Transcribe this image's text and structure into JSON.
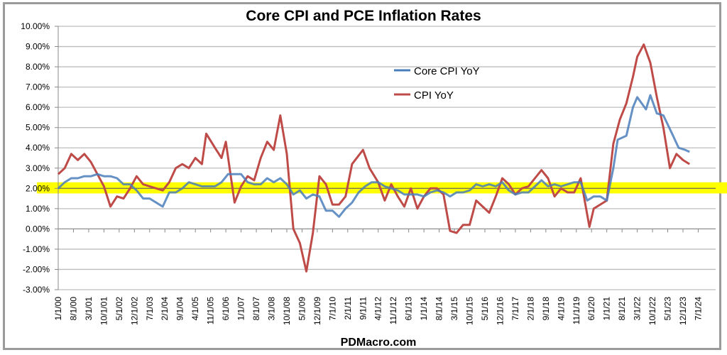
{
  "chart_data": {
    "type": "line",
    "title": "Core CPI and PCE Inflation Rates",
    "xlabel": "PDMacro.com",
    "ylabel": "",
    "ylim": [
      -3,
      10
    ],
    "yticks": [
      "-3.00%",
      "-2.00%",
      "-1.00%",
      "0.00%",
      "1.00%",
      "2.00%",
      "3.00%",
      "4.00%",
      "5.00%",
      "6.00%",
      "7.00%",
      "8.00%",
      "9.00%",
      "10.00%"
    ],
    "xticks": [
      "1/1/00",
      "8/1/00",
      "3/1/01",
      "10/1/01",
      "5/1/02",
      "12/1/02",
      "7/1/03",
      "2/1/04",
      "9/1/04",
      "4/1/05",
      "11/1/05",
      "6/1/06",
      "1/1/07",
      "8/1/07",
      "3/1/08",
      "10/1/08",
      "5/1/09",
      "12/1/09",
      "7/1/10",
      "2/1/11",
      "9/1/11",
      "4/1/12",
      "11/1/12",
      "6/1/13",
      "1/1/14",
      "8/1/14",
      "3/1/15",
      "10/1/15",
      "5/1/16",
      "12/1/16",
      "7/1/17",
      "2/1/18",
      "9/1/18",
      "4/1/19",
      "11/1/19",
      "6/1/20",
      "1/1/21",
      "8/1/21",
      "3/1/22",
      "10/1/22",
      "5/1/23",
      "12/1/23",
      "7/1/24"
    ],
    "xlim": [
      "2000-01",
      "2025-03"
    ],
    "grid": "horizontal",
    "legend": "top-center-right",
    "target_band": {
      "from": 1.75,
      "to": 2.3,
      "color": "#ffff00"
    },
    "series": [
      {
        "name": "Core CPI YoY",
        "color": "#4a7ebb",
        "x": [
          "2000-01",
          "2000-04",
          "2000-07",
          "2000-10",
          "2001-01",
          "2001-04",
          "2001-07",
          "2001-10",
          "2002-01",
          "2002-04",
          "2002-07",
          "2002-10",
          "2003-01",
          "2003-04",
          "2003-07",
          "2003-10",
          "2004-01",
          "2004-04",
          "2004-07",
          "2004-10",
          "2005-01",
          "2005-04",
          "2005-07",
          "2005-10",
          "2006-01",
          "2006-04",
          "2006-07",
          "2006-10",
          "2007-01",
          "2007-04",
          "2007-07",
          "2007-10",
          "2008-01",
          "2008-04",
          "2008-07",
          "2008-10",
          "2009-01",
          "2009-04",
          "2009-07",
          "2009-10",
          "2010-01",
          "2010-04",
          "2010-07",
          "2010-10",
          "2011-01",
          "2011-04",
          "2011-07",
          "2011-10",
          "2012-01",
          "2012-04",
          "2012-07",
          "2012-10",
          "2013-01",
          "2013-04",
          "2013-07",
          "2013-10",
          "2014-01",
          "2014-04",
          "2014-07",
          "2014-10",
          "2015-01",
          "2015-04",
          "2015-07",
          "2015-10",
          "2016-01",
          "2016-04",
          "2016-07",
          "2016-10",
          "2017-01",
          "2017-04",
          "2017-07",
          "2017-10",
          "2018-01",
          "2018-04",
          "2018-07",
          "2018-10",
          "2019-01",
          "2019-04",
          "2019-07",
          "2019-10",
          "2020-01",
          "2020-04",
          "2020-07",
          "2020-10",
          "2021-01",
          "2021-04",
          "2021-06",
          "2021-10",
          "2022-01",
          "2022-03",
          "2022-07",
          "2022-09",
          "2022-12",
          "2023-03",
          "2023-07",
          "2023-10",
          "2024-01",
          "2024-03"
        ],
        "values": [
          2.0,
          2.3,
          2.5,
          2.5,
          2.6,
          2.6,
          2.7,
          2.6,
          2.6,
          2.5,
          2.2,
          2.2,
          1.9,
          1.5,
          1.5,
          1.3,
          1.1,
          1.8,
          1.8,
          2.0,
          2.3,
          2.2,
          2.1,
          2.1,
          2.1,
          2.3,
          2.7,
          2.7,
          2.7,
          2.3,
          2.2,
          2.2,
          2.5,
          2.3,
          2.5,
          2.2,
          1.7,
          1.9,
          1.5,
          1.7,
          1.6,
          0.9,
          0.9,
          0.6,
          1.0,
          1.3,
          1.8,
          2.1,
          2.3,
          2.3,
          2.1,
          2.0,
          1.9,
          1.7,
          1.7,
          1.7,
          1.6,
          1.8,
          1.9,
          1.8,
          1.6,
          1.8,
          1.8,
          1.9,
          2.2,
          2.1,
          2.2,
          2.1,
          2.3,
          1.9,
          1.7,
          1.8,
          1.8,
          2.1,
          2.4,
          2.1,
          2.2,
          2.1,
          2.2,
          2.3,
          2.3,
          1.4,
          1.6,
          1.6,
          1.4,
          3.0,
          4.4,
          4.6,
          6.0,
          6.5,
          5.9,
          6.6,
          5.7,
          5.6,
          4.7,
          4.0,
          3.9,
          3.8
        ]
      },
      {
        "name": "CPI YoY",
        "color": "#be4b48",
        "x": [
          "2000-01",
          "2000-04",
          "2000-07",
          "2000-10",
          "2001-01",
          "2001-04",
          "2001-07",
          "2001-10",
          "2002-01",
          "2002-04",
          "2002-07",
          "2002-10",
          "2003-01",
          "2003-04",
          "2003-07",
          "2003-10",
          "2004-01",
          "2004-04",
          "2004-07",
          "2004-10",
          "2005-01",
          "2005-04",
          "2005-07",
          "2005-09",
          "2006-01",
          "2006-04",
          "2006-06",
          "2006-10",
          "2007-01",
          "2007-04",
          "2007-07",
          "2007-10",
          "2008-01",
          "2008-04",
          "2008-07",
          "2008-10",
          "2009-01",
          "2009-04",
          "2009-07",
          "2009-10",
          "2010-01",
          "2010-04",
          "2010-07",
          "2010-10",
          "2011-01",
          "2011-04",
          "2011-09",
          "2011-12",
          "2012-04",
          "2012-07",
          "2012-10",
          "2013-01",
          "2013-04",
          "2013-07",
          "2013-10",
          "2014-01",
          "2014-04",
          "2014-07",
          "2014-10",
          "2015-01",
          "2015-04",
          "2015-07",
          "2015-10",
          "2016-01",
          "2016-04",
          "2016-07",
          "2016-10",
          "2017-01",
          "2017-04",
          "2017-07",
          "2017-10",
          "2018-01",
          "2018-04",
          "2018-07",
          "2018-10",
          "2019-01",
          "2019-04",
          "2019-07",
          "2019-10",
          "2020-01",
          "2020-05",
          "2020-07",
          "2020-10",
          "2021-01",
          "2021-04",
          "2021-07",
          "2021-10",
          "2022-01",
          "2022-03",
          "2022-06",
          "2022-09",
          "2022-12",
          "2023-03",
          "2023-06",
          "2023-09",
          "2023-12",
          "2024-03"
        ],
        "values": [
          2.7,
          3.0,
          3.7,
          3.4,
          3.7,
          3.3,
          2.7,
          2.1,
          1.1,
          1.6,
          1.5,
          2.0,
          2.6,
          2.2,
          2.1,
          2.0,
          1.9,
          2.3,
          3.0,
          3.2,
          3.0,
          3.5,
          3.2,
          4.7,
          4.0,
          3.5,
          4.3,
          1.3,
          2.1,
          2.6,
          2.4,
          3.5,
          4.3,
          3.9,
          5.6,
          3.7,
          0.0,
          -0.7,
          -2.1,
          -0.2,
          2.6,
          2.2,
          1.2,
          1.2,
          1.6,
          3.2,
          3.9,
          3.0,
          2.3,
          1.4,
          2.2,
          1.6,
          1.1,
          2.0,
          1.0,
          1.6,
          2.0,
          2.0,
          1.7,
          -0.1,
          -0.2,
          0.2,
          0.2,
          1.4,
          1.1,
          0.8,
          1.6,
          2.5,
          2.2,
          1.7,
          2.0,
          2.1,
          2.5,
          2.9,
          2.5,
          1.6,
          2.0,
          1.8,
          1.8,
          2.5,
          0.1,
          1.0,
          1.2,
          1.4,
          4.2,
          5.4,
          6.2,
          7.5,
          8.5,
          9.1,
          8.2,
          6.5,
          5.0,
          3.0,
          3.7,
          3.4,
          3.2
        ]
      }
    ]
  }
}
